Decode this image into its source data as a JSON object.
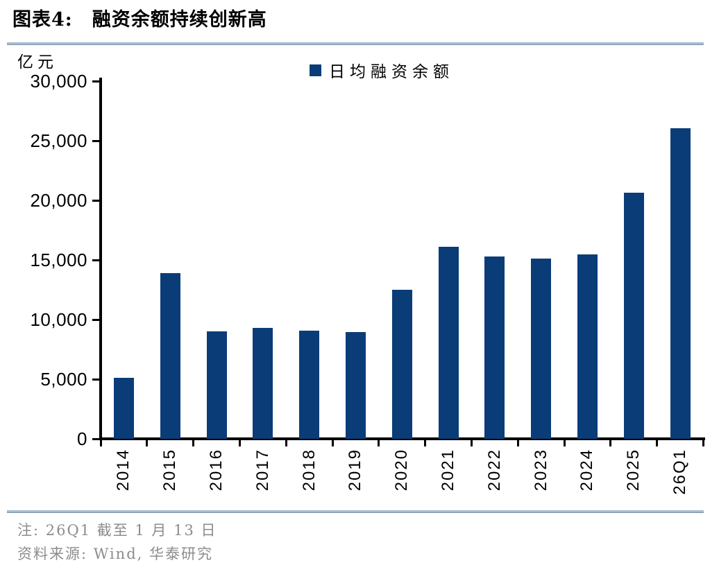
{
  "header": {
    "label": "图表4:",
    "title": "融资余额持续创新高"
  },
  "chart_data": {
    "type": "bar",
    "title": "融资余额持续创新高",
    "unit": "亿元",
    "categories": [
      "2014",
      "2015",
      "2016",
      "2017",
      "2018",
      "2019",
      "2020",
      "2021",
      "2022",
      "2023",
      "2024",
      "2025",
      "26Q1"
    ],
    "series": [
      {
        "name": "日均融资余额",
        "values": [
          5100,
          13900,
          9000,
          9300,
          9050,
          8950,
          12500,
          16100,
          15300,
          15100,
          15450,
          20650,
          26050
        ]
      }
    ],
    "xlabel": "",
    "ylabel": "亿元",
    "ylim": [
      0,
      30000
    ],
    "y_tick_step": 5000,
    "y_tick_labels": [
      "0",
      "5,000",
      "10,000",
      "15,000",
      "20,000",
      "25,000",
      "30,000"
    ],
    "grid": false,
    "legend_position": "top-center",
    "bar_color": "#0a3c78"
  },
  "colors": {
    "bar_navy": "#0a3c78",
    "divider_blue": "#a9bccd",
    "axis_black": "#000000",
    "note_gray": "#8c8c8c"
  },
  "footer": {
    "note": "注: 26Q1 截至 1 月 13 日",
    "source": "资料来源: Wind, 华泰研究"
  }
}
